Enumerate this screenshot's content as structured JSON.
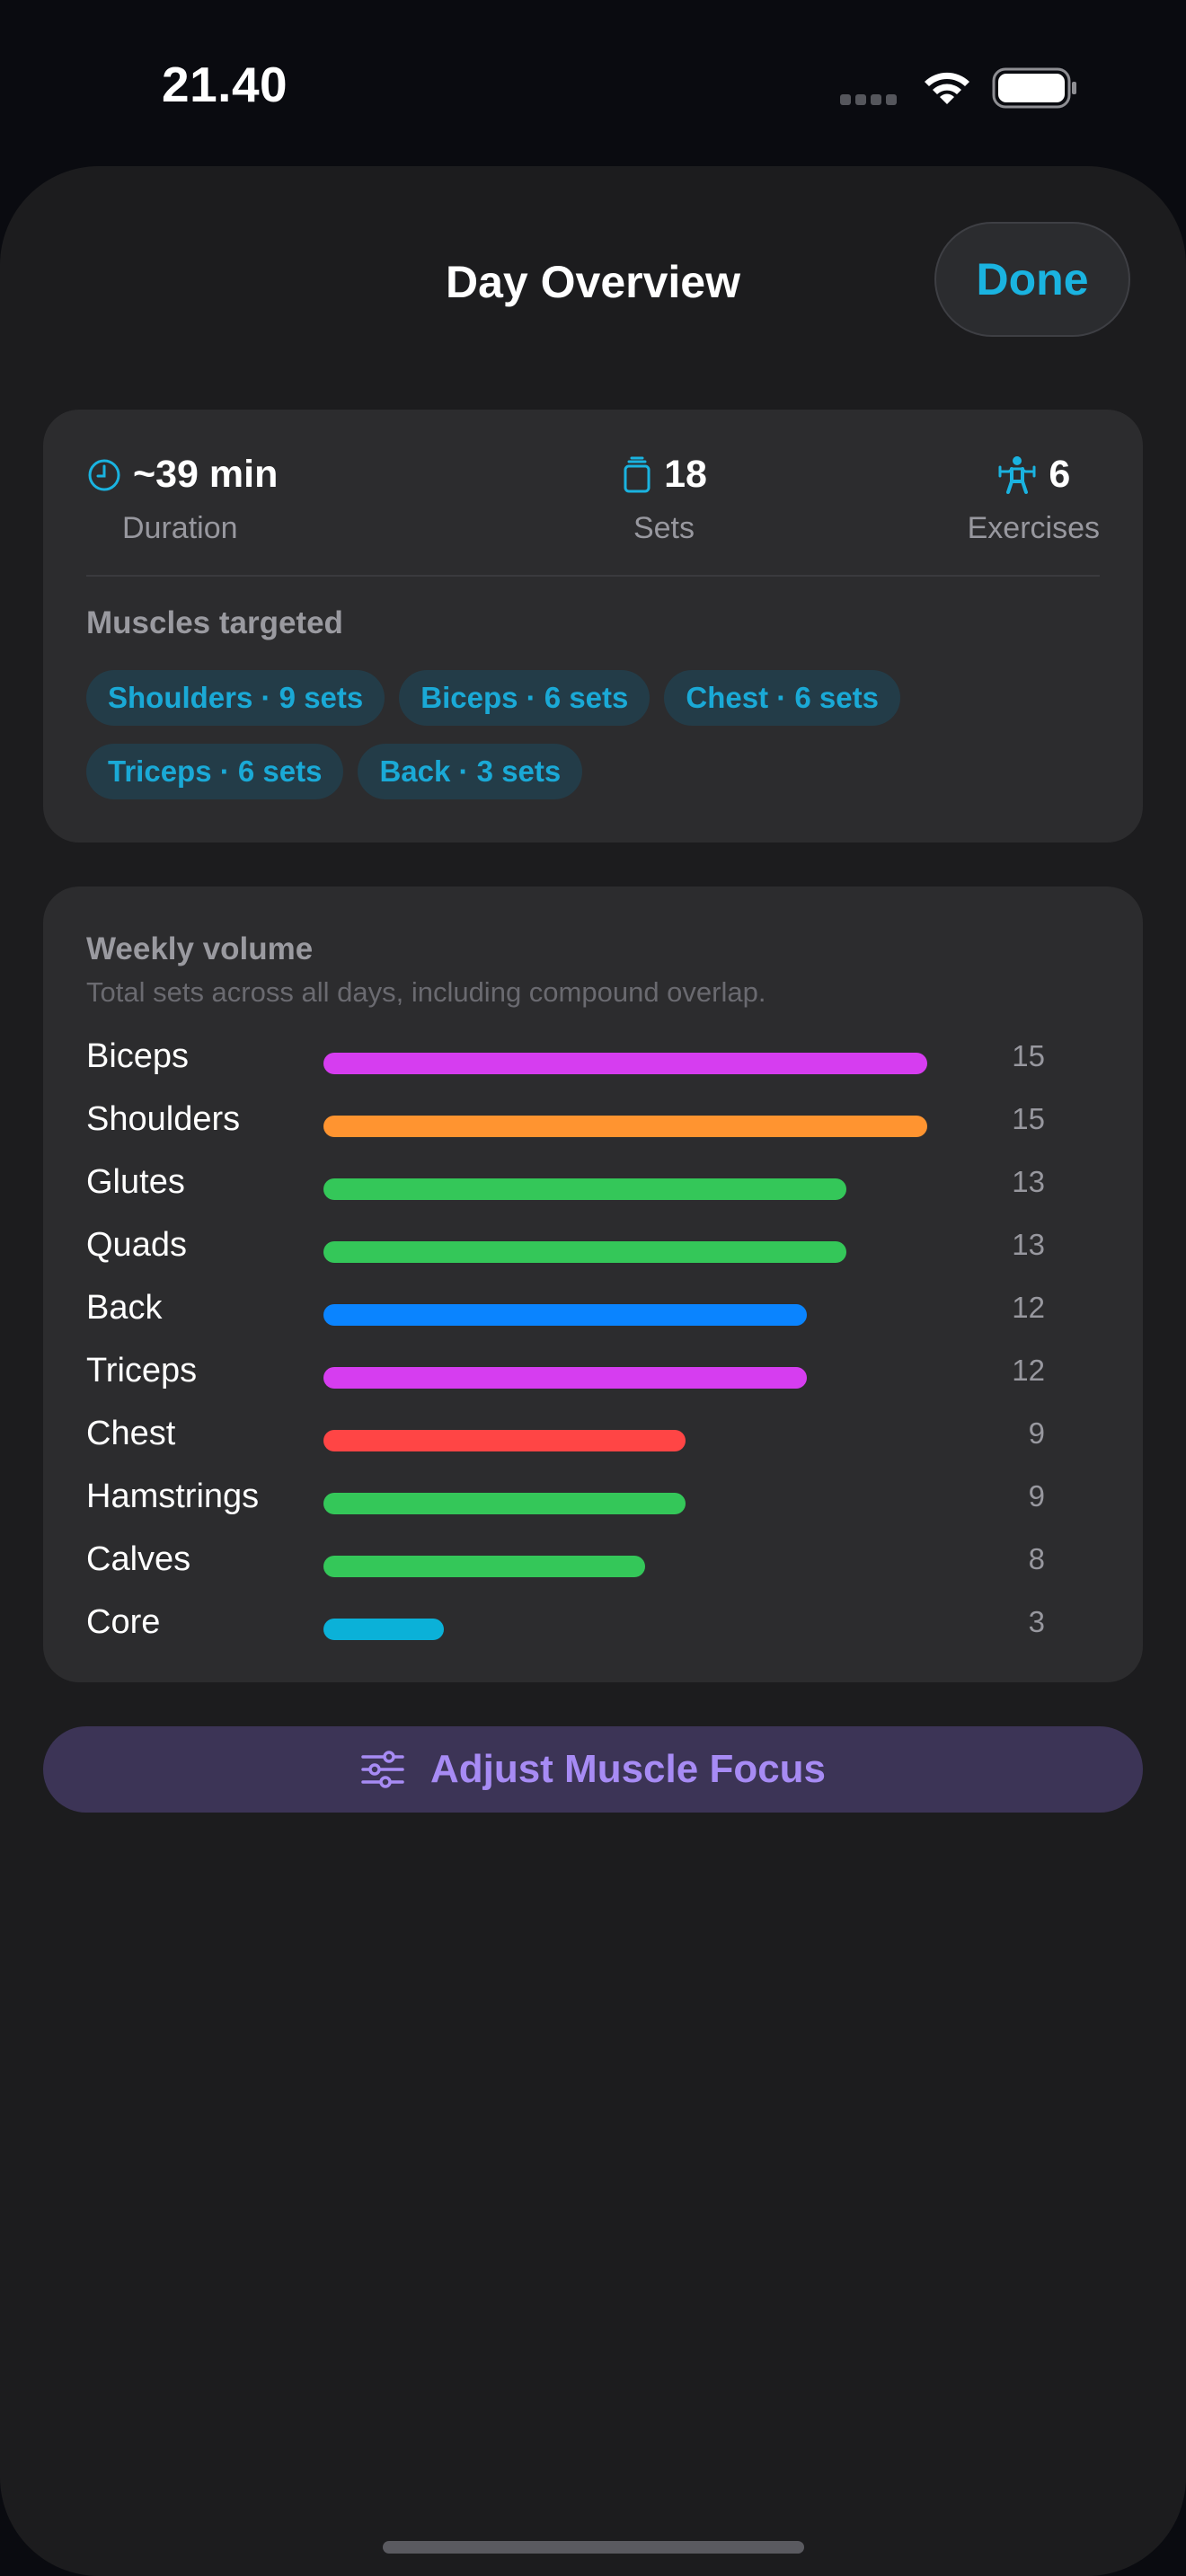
{
  "status_bar": {
    "time": "21.40"
  },
  "header": {
    "title": "Day Overview",
    "done_label": "Done"
  },
  "summary": {
    "duration": {
      "value": "~39 min",
      "label": "Duration"
    },
    "sets": {
      "value": "18",
      "label": "Sets"
    },
    "exercises": {
      "value": "6",
      "label": "Exercises"
    },
    "muscles_title": "Muscles targeted",
    "chips": [
      "Shoulders · 9 sets",
      "Biceps · 6 sets",
      "Chest · 6 sets",
      "Triceps · 6 sets",
      "Back · 3 sets"
    ]
  },
  "weekly_volume": {
    "title": "Weekly volume",
    "subtitle": "Total sets across all days, including compound overlap.",
    "max": 15,
    "rows": [
      {
        "label": "Biceps",
        "value": 15,
        "color": "#d63df0"
      },
      {
        "label": "Shoulders",
        "value": 15,
        "color": "#ff9430"
      },
      {
        "label": "Glutes",
        "value": 13,
        "color": "#34c759"
      },
      {
        "label": "Quads",
        "value": 13,
        "color": "#34c759"
      },
      {
        "label": "Back",
        "value": 12,
        "color": "#0a84ff"
      },
      {
        "label": "Triceps",
        "value": 12,
        "color": "#d63df0"
      },
      {
        "label": "Chest",
        "value": 9,
        "color": "#ff4545"
      },
      {
        "label": "Hamstrings",
        "value": 9,
        "color": "#34c759"
      },
      {
        "label": "Calves",
        "value": 8,
        "color": "#34c759"
      },
      {
        "label": "Core",
        "value": 3,
        "color": "#0bb1d8"
      }
    ]
  },
  "adjust_button": {
    "label": "Adjust Muscle Focus"
  },
  "colors": {
    "accent": "#1ab3e0",
    "purple": "#a78bf4"
  },
  "icons": [
    "clock-icon",
    "sets-icon",
    "exercise-figure-icon",
    "sliders-icon",
    "wifi-icon",
    "battery-icon"
  ]
}
